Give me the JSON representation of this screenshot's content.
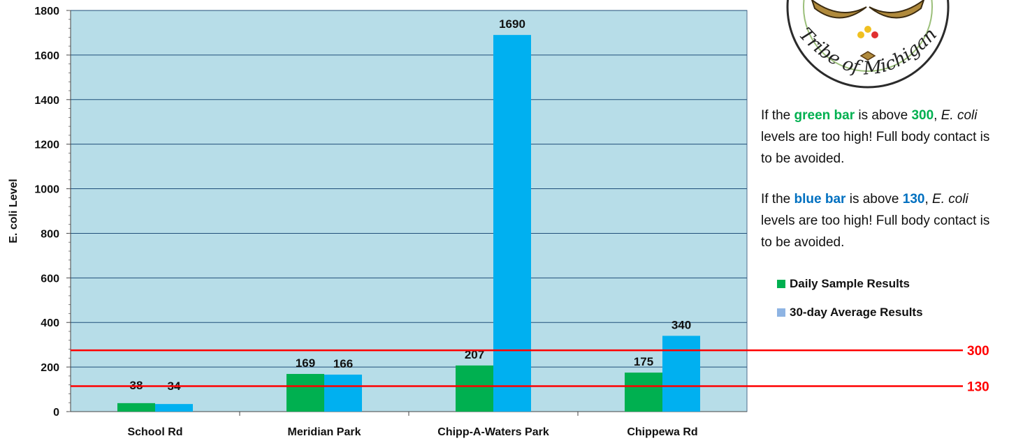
{
  "chart_data": {
    "type": "bar",
    "categories": [
      "School Rd",
      "Meridian Park",
      "Chipp-A-Waters Park",
      "Chippewa Rd"
    ],
    "series": [
      {
        "name": "Daily Sample Results",
        "values": [
          38,
          169,
          207,
          175
        ],
        "color": "#00b050"
      },
      {
        "name": "30-day Average Results",
        "values": [
          34,
          166,
          1690,
          340
        ],
        "color": "#00b0f0"
      }
    ],
    "data_labels": [
      "38",
      "34",
      "169",
      "166",
      "207",
      "1690",
      "175",
      "340"
    ],
    "ylabel": "E. coli Level",
    "xlabel": "",
    "ylim": [
      0,
      1800
    ],
    "yticks": [
      0,
      200,
      400,
      600,
      800,
      1000,
      1200,
      1400,
      1600,
      1800
    ],
    "ytick_labels": [
      "0",
      "200",
      "400",
      "600",
      "800",
      "1000",
      "1200",
      "1400",
      "1600",
      "1800"
    ],
    "grid": true,
    "plot_background": "#b7dde8",
    "reference_lines": [
      {
        "value": 300,
        "label": "300",
        "color": "#ff0000"
      },
      {
        "value": 130,
        "label": "130",
        "color": "#ff0000"
      }
    ],
    "legend_position": "right"
  },
  "logo": {
    "text": "Tribe of Michigan"
  },
  "notes": [
    {
      "prefix": "If the ",
      "highlight": "green bar",
      "highlight_color": "#00b050",
      "middle": " is above ",
      "threshold": "300",
      "after": ", ",
      "italic": "E. coli",
      "suffix": " levels are too high! Full body contact is to be avoided."
    },
    {
      "prefix": "If the ",
      "highlight": "blue bar",
      "highlight_color": "#0070c0",
      "middle": " is above ",
      "threshold": "130",
      "after": ", ",
      "italic": "E. coli",
      "suffix": " levels are too high! Full body contact is to be avoided."
    }
  ],
  "legend": [
    {
      "label": "Daily Sample Results",
      "color": "#00b050"
    },
    {
      "label": "30-day Average Results",
      "color": "#8eb4e3"
    }
  ]
}
